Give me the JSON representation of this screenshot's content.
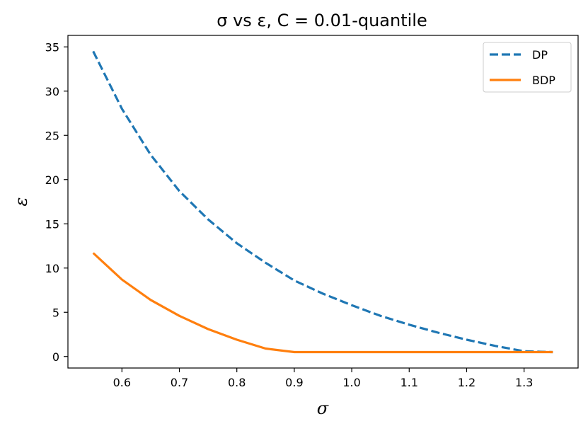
{
  "chart_data": {
    "type": "line",
    "title": "σ vs ε, C = 0.01-quantile",
    "xlabel": "σ",
    "ylabel": "ε",
    "xlim": [
      0.506,
      1.394
    ],
    "ylim": [
      -1.3,
      36.3
    ],
    "xticks": [
      0.6,
      0.7,
      0.8,
      0.9,
      1.0,
      1.1,
      1.2,
      1.3
    ],
    "xtick_labels": [
      "0.6",
      "0.7",
      "0.8",
      "0.9",
      "1.0",
      "1.1",
      "1.2",
      "1.3"
    ],
    "yticks": [
      0,
      5,
      10,
      15,
      20,
      25,
      30,
      35
    ],
    "ytick_labels": [
      "0",
      "5",
      "10",
      "15",
      "20",
      "25",
      "30",
      "35"
    ],
    "grid": false,
    "legend_position": "top-right",
    "series": [
      {
        "name": "DP",
        "color": "#1f77b4",
        "style": "dashed",
        "x": [
          0.55,
          0.6,
          0.65,
          0.7,
          0.75,
          0.8,
          0.85,
          0.9,
          0.95,
          1.0,
          1.05,
          1.1,
          1.15,
          1.2,
          1.25,
          1.3,
          1.35
        ],
        "y": [
          34.5,
          28.0,
          22.8,
          18.7,
          15.5,
          12.8,
          10.6,
          8.6,
          7.1,
          5.8,
          4.6,
          3.6,
          2.7,
          1.9,
          1.2,
          0.6,
          0.5
        ]
      },
      {
        "name": "BDP",
        "color": "#ff7f0e",
        "style": "solid",
        "x": [
          0.55,
          0.6,
          0.65,
          0.7,
          0.75,
          0.8,
          0.85,
          0.9,
          0.95,
          1.0,
          1.05,
          1.1,
          1.15,
          1.2,
          1.25,
          1.3,
          1.35
        ],
        "y": [
          11.7,
          8.7,
          6.4,
          4.6,
          3.1,
          1.9,
          0.9,
          0.5,
          0.5,
          0.5,
          0.5,
          0.5,
          0.5,
          0.5,
          0.5,
          0.5,
          0.5
        ]
      }
    ]
  }
}
